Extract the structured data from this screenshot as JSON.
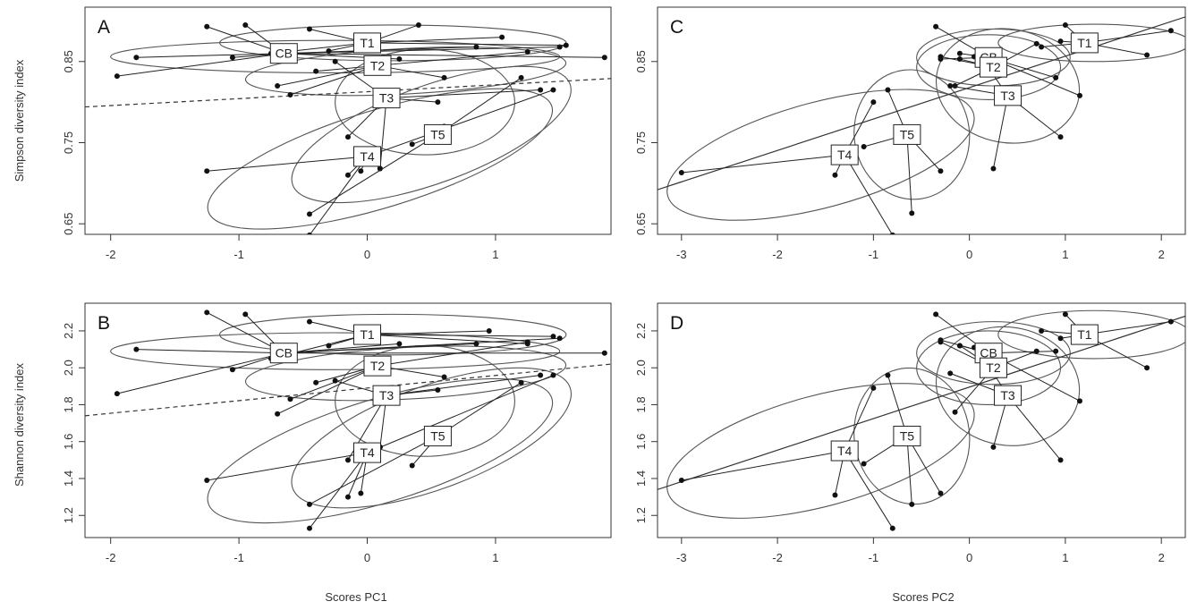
{
  "figure": {
    "y_labels": [
      "Simpson diversity index",
      "Shannon diversity index"
    ],
    "x_labels": [
      "Scores PC1",
      "Scores PC2"
    ]
  },
  "chart_data": [
    {
      "type": "scatter",
      "panel": "A",
      "xlabel": "",
      "ylabel": "Simpson diversity index",
      "xlim": [
        -2.2,
        1.9
      ],
      "ylim": [
        0.637,
        0.917
      ],
      "xticks": [
        -2,
        -1,
        0,
        1
      ],
      "yticks": [
        0.65,
        0.75,
        0.85
      ],
      "ytick_labels": [
        "0.65",
        "0.75",
        "0.85"
      ],
      "groups": [
        {
          "name": "CB",
          "centroid": [
            -0.65,
            0.86
          ],
          "ellipse": {
            "cx": -0.25,
            "cy": 0.856,
            "rx": 1.75,
            "ry": 0.02,
            "angle": 0
          },
          "points": [
            [
              -1.95,
              0.832
            ],
            [
              -1.8,
              0.855
            ],
            [
              -1.25,
              0.893
            ],
            [
              -0.95,
              0.895
            ],
            [
              -1.05,
              0.855
            ],
            [
              1.85,
              0.855
            ],
            [
              1.5,
              0.868
            ],
            [
              0.85,
              0.868
            ],
            [
              0.25,
              0.853
            ]
          ]
        },
        {
          "name": "T1",
          "centroid": [
            0.0,
            0.873
          ],
          "ellipse": {
            "cx": 0.2,
            "cy": 0.873,
            "rx": 1.35,
            "ry": 0.022,
            "angle": 0
          },
          "points": [
            [
              -0.45,
              0.89
            ],
            [
              -0.75,
              0.86
            ],
            [
              0.4,
              0.895
            ],
            [
              1.05,
              0.88
            ],
            [
              1.55,
              0.87
            ],
            [
              -0.3,
              0.863
            ]
          ]
        },
        {
          "name": "T2",
          "centroid": [
            0.08,
            0.845
          ],
          "ellipse": {
            "cx": 0.3,
            "cy": 0.838,
            "rx": 1.25,
            "ry": 0.028,
            "angle": 3
          },
          "points": [
            [
              -0.6,
              0.809
            ],
            [
              -0.4,
              0.838
            ],
            [
              -0.7,
              0.82
            ],
            [
              1.25,
              0.862
            ],
            [
              0.6,
              0.83
            ]
          ]
        },
        {
          "name": "T3",
          "centroid": [
            0.15,
            0.805
          ],
          "ellipse": {
            "cx": 0.45,
            "cy": 0.8,
            "rx": 0.7,
            "ry": 0.065,
            "angle": 0
          },
          "points": [
            [
              -0.15,
              0.757
            ],
            [
              0.55,
              0.8
            ],
            [
              0.1,
              0.718
            ],
            [
              1.35,
              0.815
            ],
            [
              -0.25,
              0.85
            ]
          ]
        },
        {
          "name": "T4",
          "centroid": [
            0.0,
            0.733
          ],
          "ellipse": {
            "cx": 0.1,
            "cy": 0.73,
            "rx": 1.4,
            "ry": 0.06,
            "angle": 17
          },
          "points": [
            [
              -1.25,
              0.715
            ],
            [
              -0.45,
              0.636
            ],
            [
              -0.15,
              0.71
            ],
            [
              -0.05,
              0.715
            ],
            [
              1.45,
              0.815
            ],
            [
              0.1,
              0.718
            ]
          ]
        },
        {
          "name": "T5",
          "centroid": [
            0.55,
            0.76
          ],
          "ellipse": {
            "cx": 0.5,
            "cy": 0.76,
            "rx": 1.15,
            "ry": 0.06,
            "angle": 20
          },
          "points": [
            [
              -0.45,
              0.662
            ],
            [
              0.35,
              0.748
            ],
            [
              1.2,
              0.83
            ],
            [
              0.6,
              0.77
            ]
          ]
        }
      ],
      "trend": {
        "style": "dashed",
        "x": [
          -2.2,
          1.9
        ],
        "y": [
          0.794,
          0.829
        ]
      }
    },
    {
      "type": "scatter",
      "panel": "C",
      "xlabel": "",
      "ylabel": "",
      "xlim": [
        -3.25,
        2.25
      ],
      "ylim": [
        0.637,
        0.917
      ],
      "xticks": [
        -3,
        -2,
        -1,
        0,
        1,
        2
      ],
      "yticks": [
        0.65,
        0.75,
        0.85
      ],
      "ytick_labels": [
        "0.65",
        "0.75",
        "0.85"
      ],
      "groups": [
        {
          "name": "CB",
          "centroid": [
            0.2,
            0.855
          ],
          "ellipse": {
            "cx": 0.25,
            "cy": 0.855,
            "rx": 0.8,
            "ry": 0.035,
            "angle": 0
          },
          "points": [
            [
              -0.3,
              0.853
            ],
            [
              -0.1,
              0.86
            ],
            [
              0.9,
              0.83
            ],
            [
              1.15,
              0.808
            ],
            [
              -0.35,
              0.893
            ]
          ]
        },
        {
          "name": "T1",
          "centroid": [
            1.2,
            0.873
          ],
          "ellipse": {
            "cx": 1.3,
            "cy": 0.873,
            "rx": 1.0,
            "ry": 0.023,
            "angle": 0
          },
          "points": [
            [
              0.75,
              0.868
            ],
            [
              1.0,
              0.895
            ],
            [
              1.85,
              0.858
            ],
            [
              2.1,
              0.888
            ],
            [
              0.95,
              0.875
            ]
          ]
        },
        {
          "name": "T2",
          "centroid": [
            0.25,
            0.843
          ],
          "ellipse": {
            "cx": 0.2,
            "cy": 0.843,
            "rx": 0.75,
            "ry": 0.04,
            "angle": 0
          },
          "points": [
            [
              -0.1,
              0.853
            ],
            [
              -0.15,
              0.82
            ],
            [
              0.7,
              0.872
            ],
            [
              -0.3,
              0.856
            ],
            [
              0.05,
              0.856
            ]
          ]
        },
        {
          "name": "T3",
          "centroid": [
            0.4,
            0.808
          ],
          "ellipse": {
            "cx": 0.4,
            "cy": 0.82,
            "rx": 0.75,
            "ry": 0.07,
            "angle": -10
          },
          "points": [
            [
              0.25,
              0.718
            ],
            [
              0.95,
              0.757
            ],
            [
              -0.2,
              0.82
            ],
            [
              0.15,
              0.85
            ]
          ]
        },
        {
          "name": "T4",
          "centroid": [
            -1.3,
            0.735
          ],
          "ellipse": {
            "cx": -1.55,
            "cy": 0.735,
            "rx": 1.65,
            "ry": 0.065,
            "angle": 15
          },
          "points": [
            [
              -3.0,
              0.713
            ],
            [
              -1.4,
              0.71
            ],
            [
              -1.0,
              0.8
            ],
            [
              -0.8,
              0.636
            ]
          ]
        },
        {
          "name": "T5",
          "centroid": [
            -0.65,
            0.76
          ],
          "ellipse": {
            "cx": -0.6,
            "cy": 0.76,
            "rx": 0.6,
            "ry": 0.08,
            "angle": 8
          },
          "points": [
            [
              -0.85,
              0.815
            ],
            [
              -0.6,
              0.663
            ],
            [
              -0.3,
              0.715
            ],
            [
              -1.1,
              0.745
            ]
          ]
        }
      ],
      "trend": {
        "style": "solid",
        "x": [
          -3.25,
          2.25
        ],
        "y": [
          0.692,
          0.905
        ]
      }
    },
    {
      "type": "scatter",
      "panel": "B",
      "xlabel": "Scores PC1",
      "ylabel": "Shannon diversity index",
      "xlim": [
        -2.2,
        1.9
      ],
      "ylim": [
        1.08,
        2.35
      ],
      "xticks": [
        -2,
        -1,
        0,
        1
      ],
      "yticks": [
        1.2,
        1.4,
        1.6,
        1.8,
        2.0,
        2.2
      ],
      "ytick_labels": [
        "1.2",
        "1.4",
        "1.6",
        "1.8",
        "2.0",
        "2.2"
      ],
      "groups": [
        {
          "name": "CB",
          "centroid": [
            -0.65,
            2.08
          ],
          "ellipse": {
            "cx": -0.25,
            "cy": 2.09,
            "rx": 1.75,
            "ry": 0.1,
            "angle": 0
          },
          "points": [
            [
              -1.95,
              1.86
            ],
            [
              -1.8,
              2.1
            ],
            [
              -1.25,
              2.3
            ],
            [
              -0.95,
              2.29
            ],
            [
              -1.05,
              1.99
            ],
            [
              1.85,
              2.08
            ],
            [
              1.5,
              2.16
            ],
            [
              0.85,
              2.13
            ],
            [
              0.25,
              2.13
            ]
          ]
        },
        {
          "name": "T1",
          "centroid": [
            0.0,
            2.18
          ],
          "ellipse": {
            "cx": 0.2,
            "cy": 2.18,
            "rx": 1.35,
            "ry": 0.11,
            "angle": 0
          },
          "points": [
            [
              -0.45,
              2.25
            ],
            [
              -0.75,
              2.05
            ],
            [
              0.95,
              2.2
            ],
            [
              1.45,
              2.17
            ],
            [
              1.25,
              2.13
            ],
            [
              -0.3,
              2.12
            ]
          ]
        },
        {
          "name": "T2",
          "centroid": [
            0.08,
            2.01
          ],
          "ellipse": {
            "cx": 0.3,
            "cy": 1.97,
            "rx": 1.25,
            "ry": 0.14,
            "angle": 3
          },
          "points": [
            [
              -0.6,
              1.83
            ],
            [
              -0.4,
              1.92
            ],
            [
              -0.7,
              1.75
            ],
            [
              1.25,
              2.14
            ],
            [
              0.6,
              1.95
            ]
          ]
        },
        {
          "name": "T3",
          "centroid": [
            0.15,
            1.85
          ],
          "ellipse": {
            "cx": 0.45,
            "cy": 1.82,
            "rx": 0.7,
            "ry": 0.3,
            "angle": 0
          },
          "points": [
            [
              -0.15,
              1.5
            ],
            [
              0.55,
              1.88
            ],
            [
              0.1,
              1.57
            ],
            [
              1.35,
              1.96
            ],
            [
              -0.25,
              1.93
            ]
          ]
        },
        {
          "name": "T4",
          "centroid": [
            0.0,
            1.54
          ],
          "ellipse": {
            "cx": 0.1,
            "cy": 1.55,
            "rx": 1.4,
            "ry": 0.28,
            "angle": 17
          },
          "points": [
            [
              -1.25,
              1.39
            ],
            [
              -0.45,
              1.13
            ],
            [
              -0.15,
              1.3
            ],
            [
              -0.05,
              1.32
            ],
            [
              1.45,
              1.96
            ],
            [
              0.1,
              1.57
            ]
          ]
        },
        {
          "name": "T5",
          "centroid": [
            0.55,
            1.63
          ],
          "ellipse": {
            "cx": 0.5,
            "cy": 1.62,
            "rx": 1.15,
            "ry": 0.28,
            "angle": 20
          },
          "points": [
            [
              -0.45,
              1.26
            ],
            [
              0.35,
              1.47
            ],
            [
              1.2,
              1.92
            ],
            [
              0.6,
              1.66
            ]
          ]
        }
      ],
      "trend": {
        "style": "dashed",
        "x": [
          -2.2,
          1.9
        ],
        "y": [
          1.74,
          2.02
        ]
      }
    },
    {
      "type": "scatter",
      "panel": "D",
      "xlabel": "Scores PC2",
      "ylabel": "",
      "xlim": [
        -3.25,
        2.25
      ],
      "ylim": [
        1.08,
        2.35
      ],
      "xticks": [
        -3,
        -2,
        -1,
        0,
        1,
        2
      ],
      "yticks": [
        1.2,
        1.4,
        1.6,
        1.8,
        2.0,
        2.2
      ],
      "ytick_labels": [
        "1.2",
        "1.4",
        "1.6",
        "1.8",
        "2.0",
        "2.2"
      ],
      "groups": [
        {
          "name": "CB",
          "centroid": [
            0.2,
            2.08
          ],
          "ellipse": {
            "cx": 0.25,
            "cy": 2.08,
            "rx": 0.8,
            "ry": 0.17,
            "angle": 0
          },
          "points": [
            [
              -0.3,
              2.15
            ],
            [
              -0.1,
              2.12
            ],
            [
              0.9,
              2.09
            ],
            [
              1.15,
              1.82
            ],
            [
              -0.35,
              2.29
            ]
          ]
        },
        {
          "name": "T1",
          "centroid": [
            1.2,
            2.18
          ],
          "ellipse": {
            "cx": 1.3,
            "cy": 2.18,
            "rx": 1.0,
            "ry": 0.13,
            "angle": 0
          },
          "points": [
            [
              0.75,
              2.2
            ],
            [
              1.0,
              2.29
            ],
            [
              1.85,
              2.0
            ],
            [
              2.1,
              2.25
            ],
            [
              0.95,
              2.16
            ]
          ]
        },
        {
          "name": "T2",
          "centroid": [
            0.25,
            2.0
          ],
          "ellipse": {
            "cx": 0.2,
            "cy": 2.0,
            "rx": 0.75,
            "ry": 0.2,
            "angle": 0
          },
          "points": [
            [
              -0.1,
              2.12
            ],
            [
              -0.15,
              1.76
            ],
            [
              0.7,
              2.09
            ],
            [
              -0.3,
              2.14
            ],
            [
              0.05,
              2.11
            ]
          ]
        },
        {
          "name": "T3",
          "centroid": [
            0.4,
            1.85
          ],
          "ellipse": {
            "cx": 0.4,
            "cy": 1.9,
            "rx": 0.75,
            "ry": 0.32,
            "angle": -10
          },
          "points": [
            [
              0.25,
              1.57
            ],
            [
              0.95,
              1.5
            ],
            [
              -0.2,
              1.97
            ],
            [
              0.15,
              2.05
            ]
          ]
        },
        {
          "name": "T4",
          "centroid": [
            -1.3,
            1.55
          ],
          "ellipse": {
            "cx": -1.55,
            "cy": 1.55,
            "rx": 1.65,
            "ry": 0.3,
            "angle": 15
          },
          "points": [
            [
              -3.0,
              1.39
            ],
            [
              -1.4,
              1.31
            ],
            [
              -1.0,
              1.89
            ],
            [
              -0.8,
              1.13
            ]
          ]
        },
        {
          "name": "T5",
          "centroid": [
            -0.65,
            1.63
          ],
          "ellipse": {
            "cx": -0.6,
            "cy": 1.63,
            "rx": 0.6,
            "ry": 0.37,
            "angle": 8
          },
          "points": [
            [
              -0.85,
              1.96
            ],
            [
              -0.6,
              1.26
            ],
            [
              -0.3,
              1.32
            ],
            [
              -1.1,
              1.48
            ]
          ]
        }
      ],
      "trend": {
        "style": "solid",
        "x": [
          -3.25,
          2.25
        ],
        "y": [
          1.34,
          2.28
        ]
      }
    }
  ]
}
